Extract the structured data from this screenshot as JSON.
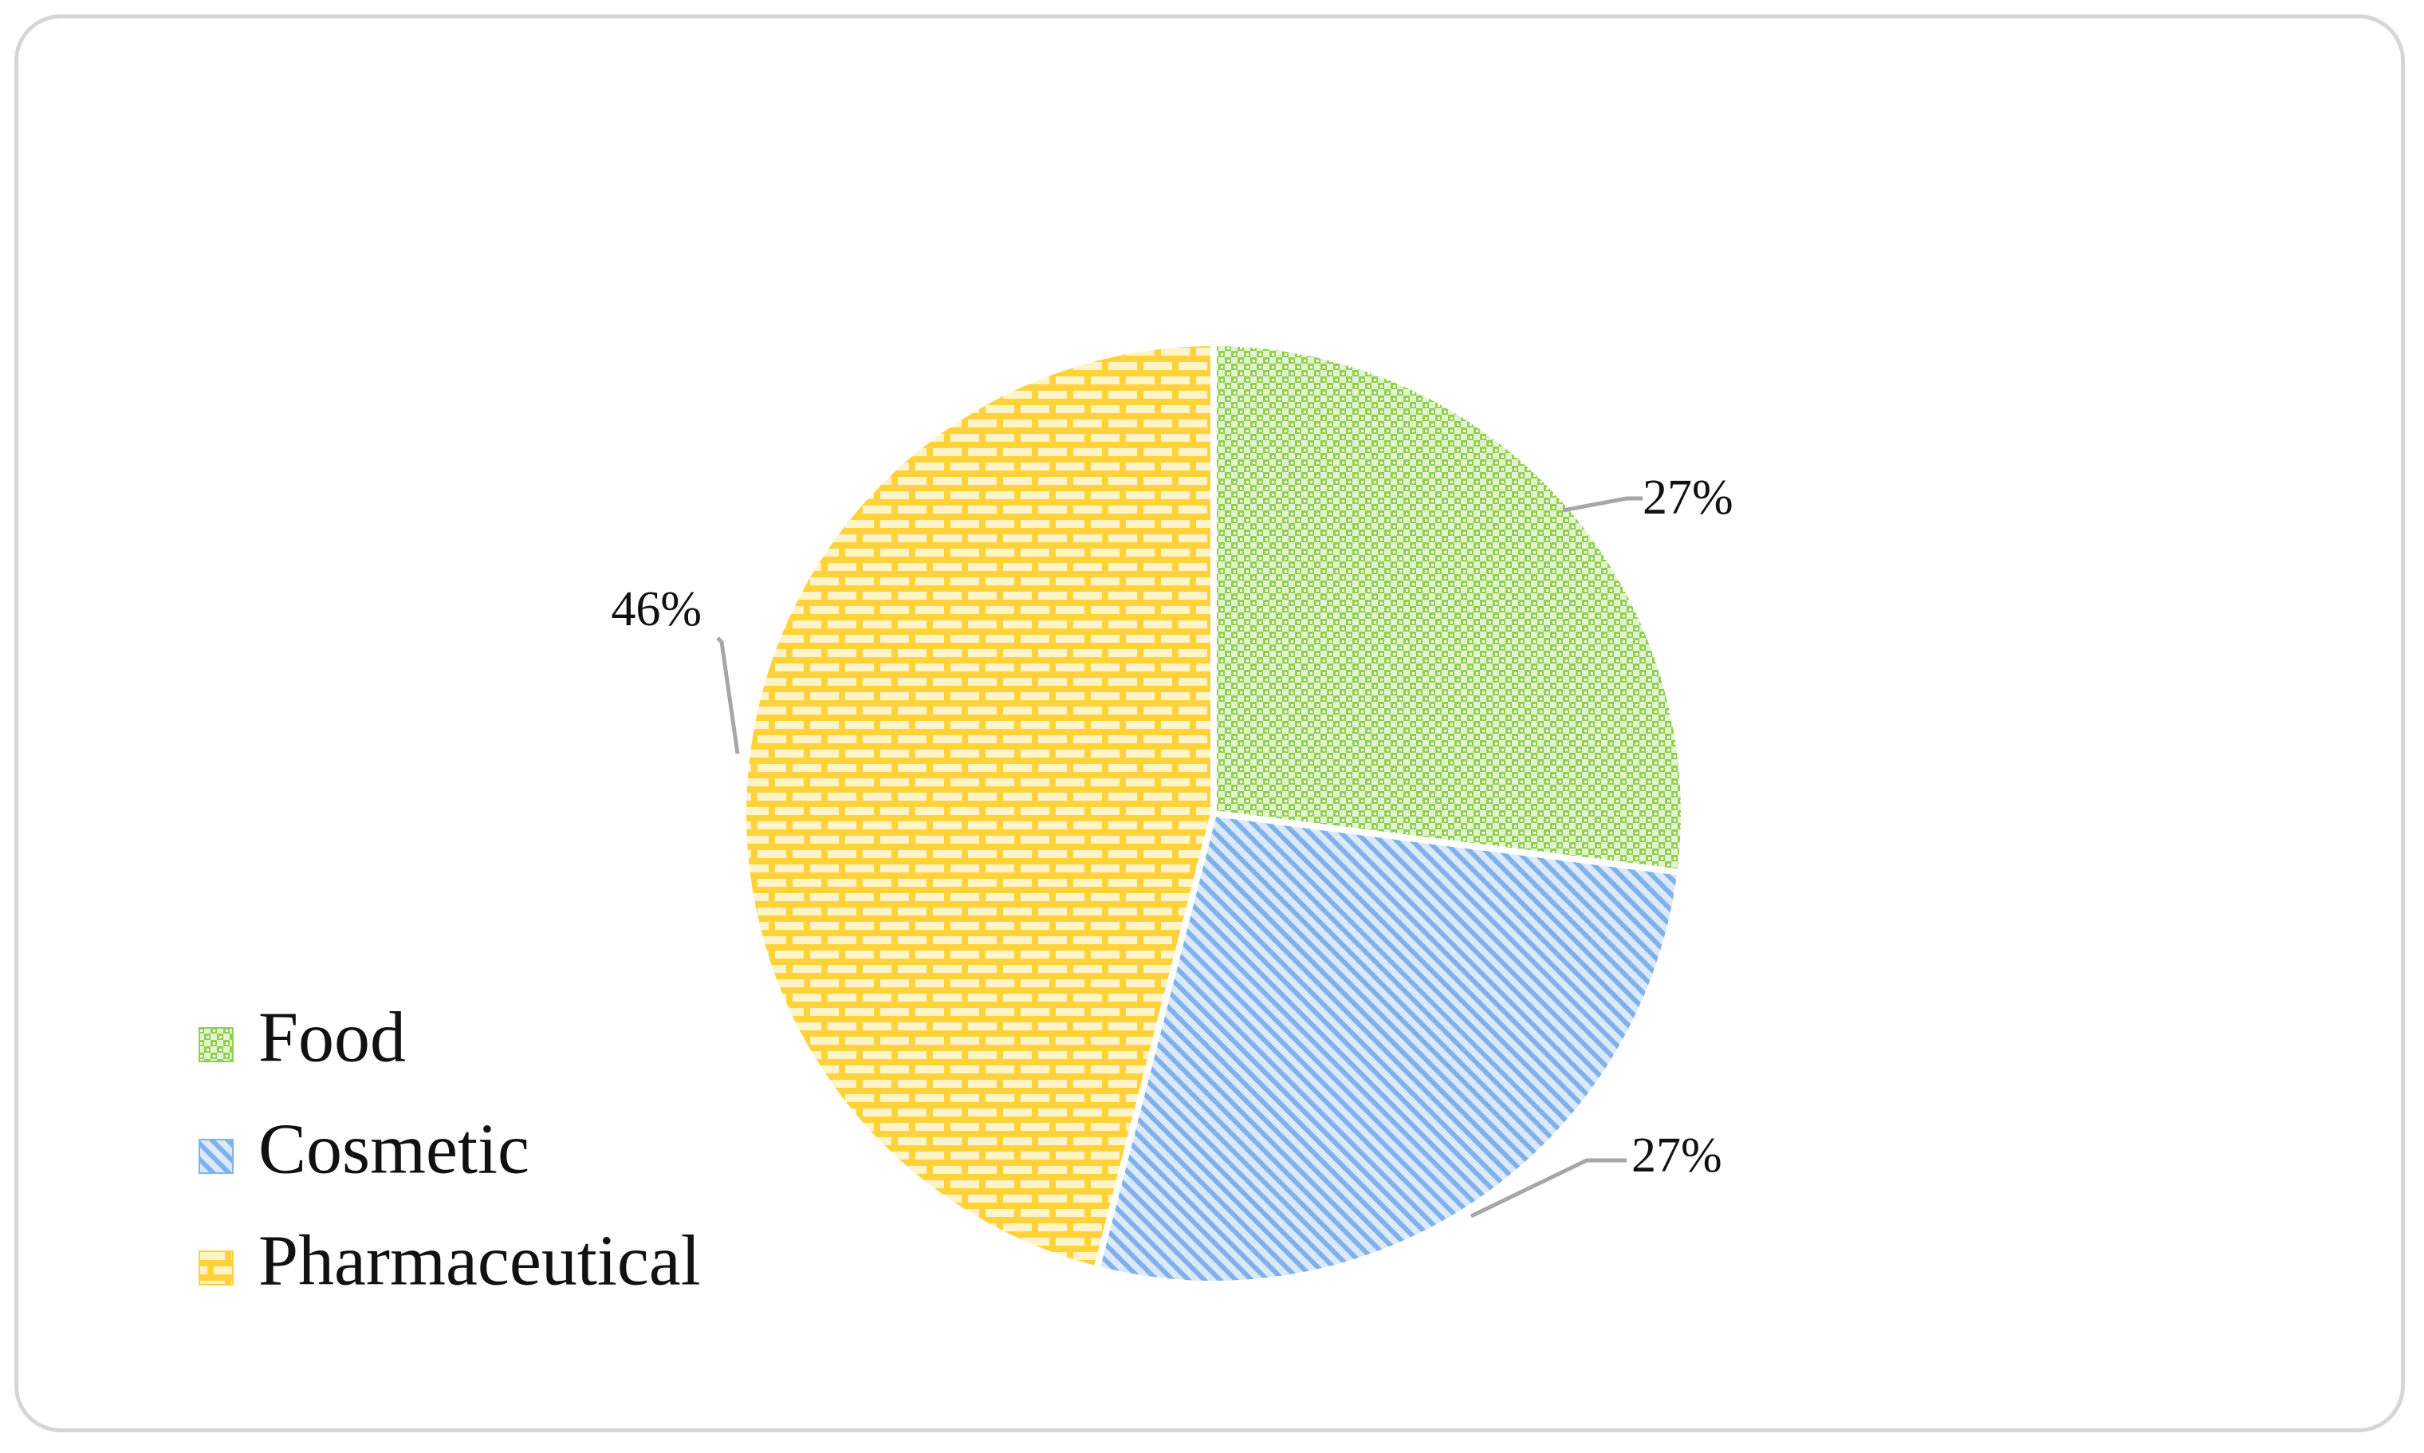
{
  "chart_data": {
    "type": "pie",
    "title": "",
    "categories": [
      "Food",
      "Cosmetic",
      "Pharmaceutical"
    ],
    "values": [
      27,
      27,
      46
    ],
    "labels": [
      "27%",
      "27%",
      "46%"
    ],
    "colors": [
      "#8fd14f",
      "#7fb2ec",
      "#ffd23a"
    ],
    "patterns": [
      "checker",
      "diagonal-stripes",
      "bricks"
    ],
    "legend_position": "bottom-left",
    "start_angle": "12 o'clock",
    "direction": "clockwise"
  }
}
